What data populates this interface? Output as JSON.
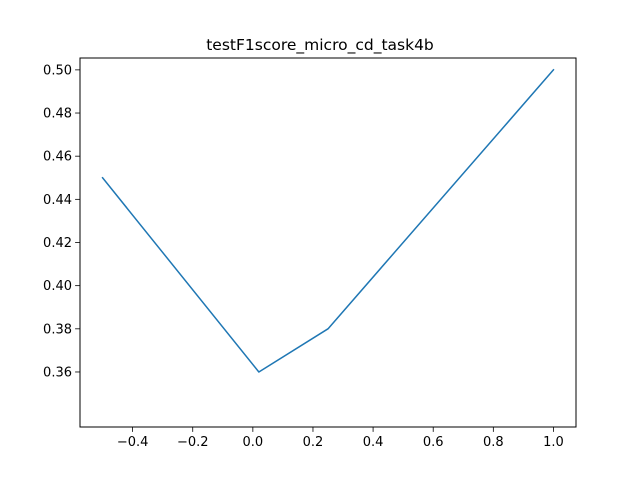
{
  "chart_data": {
    "type": "line",
    "title": "testF1score_micro_cd_task4b",
    "xlabel": "",
    "ylabel": "",
    "x": [
      -0.5,
      0.02,
      0.25,
      1.0
    ],
    "series": [
      {
        "values": [
          0.45,
          0.36,
          0.38,
          0.5
        ],
        "color": "#1f77b4"
      }
    ],
    "xlim": [
      -0.575,
      1.075
    ],
    "ylim": [
      0.3345,
      0.5055
    ],
    "x_ticks": [
      -0.4,
      -0.2,
      0.0,
      0.2,
      0.4,
      0.6,
      0.8,
      1.0
    ],
    "x_tick_labels": [
      "−0.4",
      "−0.2",
      "0.0",
      "0.2",
      "0.4",
      "0.6",
      "0.8",
      "1.0"
    ],
    "y_ticks": [
      0.36,
      0.38,
      0.4,
      0.42,
      0.44,
      0.46,
      0.48,
      0.5
    ],
    "y_tick_labels": [
      "0.36",
      "0.38",
      "0.40",
      "0.42",
      "0.44",
      "0.46",
      "0.48",
      "0.50"
    ],
    "grid": false,
    "legend": "none"
  }
}
